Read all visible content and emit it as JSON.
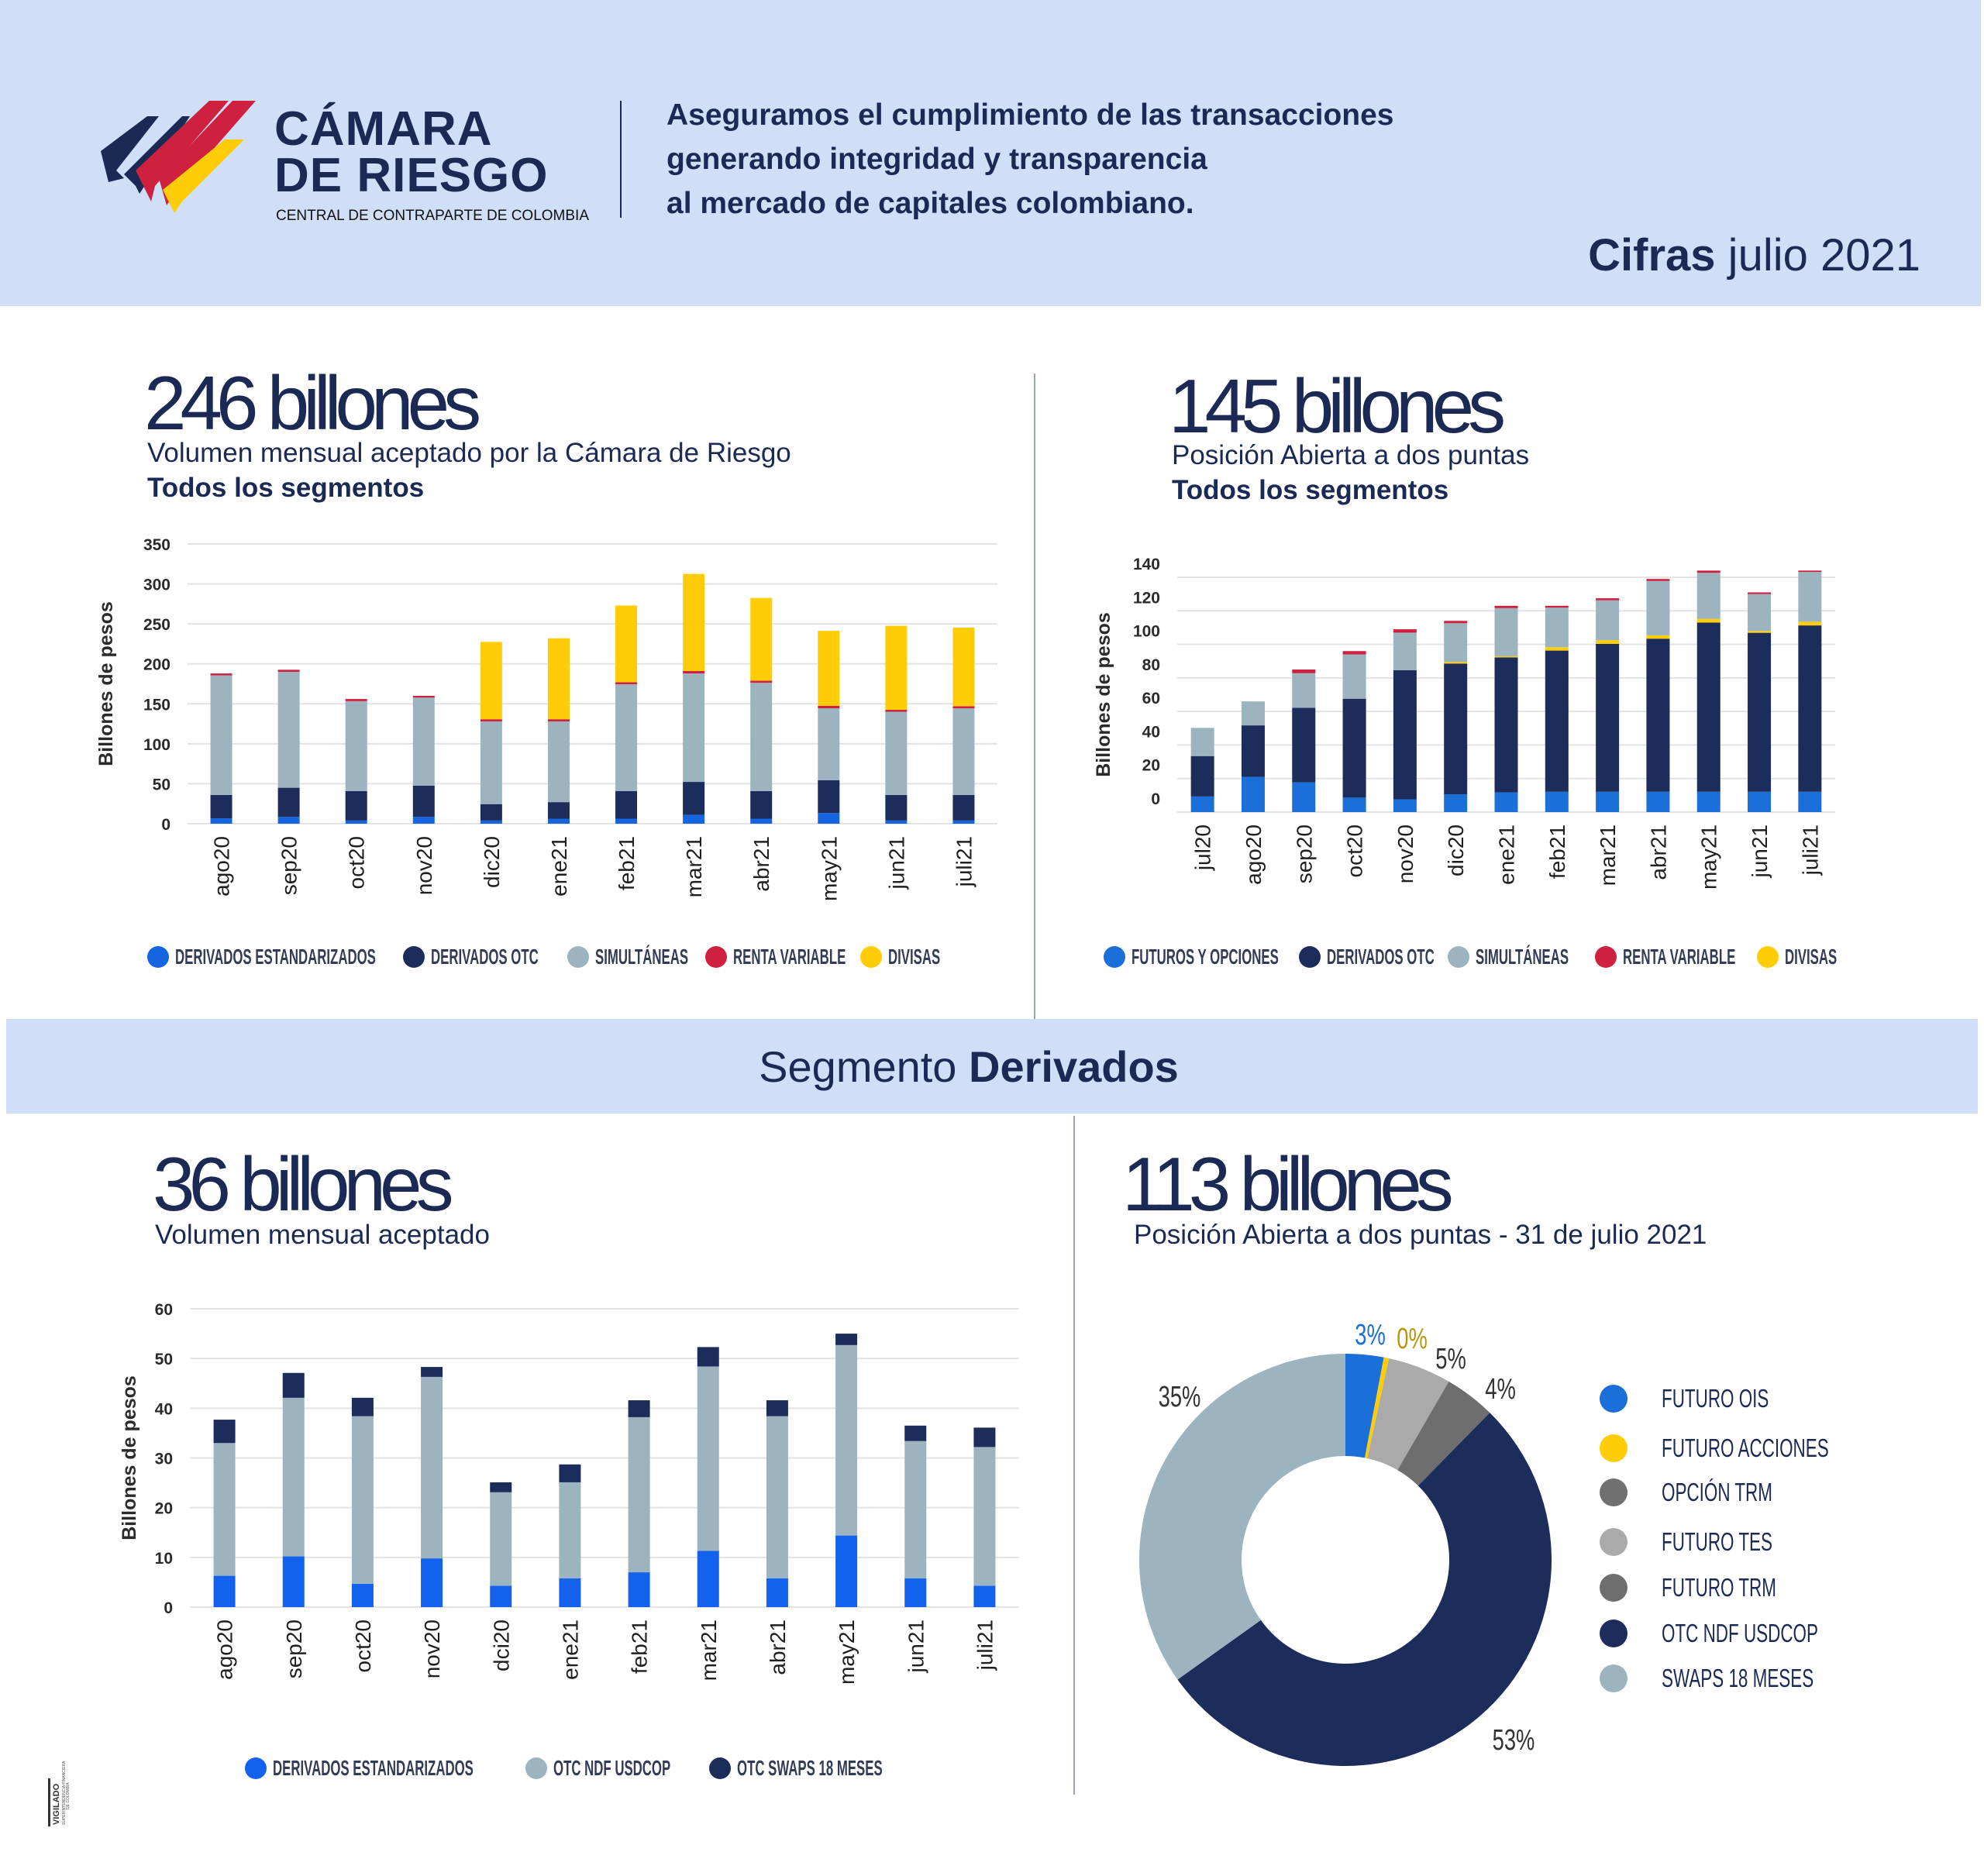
{
  "header": {
    "brand_line1": "CÁMARA",
    "brand_line2": "DE RIESGO",
    "brand_sub": "CENTRAL DE CONTRAPARTE DE COLOMBIA",
    "tagline": [
      "Aseguramos el cumplimiento de las transacciones",
      "generando integridad y transparencia",
      "al mercado de capitales colombiano."
    ],
    "cifras_bold": "Cifras",
    "cifras_rest": " julio 2021"
  },
  "colors": {
    "band": "#cedff7",
    "navy": "#1b2a55",
    "blue": "#1565e0",
    "gray_blue": "#9bb4c0",
    "red": "#d0203f",
    "yellow": "#fecd07",
    "light_gray": "#aaaaaa",
    "dark_gray": "#6e6e6e"
  },
  "panel1": {
    "big": "246 billones",
    "subtitle": "Volumen mensual aceptado por la Cámara de Riesgo",
    "subtitle_bold": "Todos los segmentos"
  },
  "panel2": {
    "big": "145 billones",
    "subtitle": "Posición Abierta a dos puntas",
    "subtitle_bold": "Todos los segmentos"
  },
  "segment_band": {
    "light": "Segmento ",
    "bold": "Derivados"
  },
  "panel3": {
    "big": "36 billones",
    "subtitle": "Volumen mensual aceptado"
  },
  "panel4": {
    "big": "113 billones",
    "subtitle": "Posición Abierta a dos puntas -  31 de julio  2021"
  },
  "stamp": {
    "text": "VIGILADO SUPERINTENDENCIA FINANCIERA DE COLOMBIA"
  },
  "chart_data": [
    {
      "type": "bar",
      "stacked": true,
      "title": "",
      "xlabel": "",
      "ylabel": "Billones de pesos",
      "ylim": [
        0,
        350
      ],
      "yticks": [
        0,
        50,
        100,
        150,
        200,
        250,
        300,
        350
      ],
      "grid": true,
      "legend": "bottom",
      "categories": [
        "ago20",
        "sep20",
        "oct20",
        "nov20",
        "dic20",
        "ene21",
        "feb21",
        "mar21",
        "abr21",
        "may21",
        "jun21",
        "juli21"
      ],
      "series": [
        {
          "name": "DERIVADOS  ESTANDARIZADOS",
          "color": "#1565e0",
          "values": [
            6.7,
            8.5,
            4,
            8.5,
            4,
            6.3,
            6.3,
            11,
            6.3,
            13.4,
            4,
            4
          ]
        },
        {
          "name": "DERIVADOS  OTC",
          "color": "#1c2c5b",
          "values": [
            29.3,
            36.5,
            36.8,
            39,
            20.5,
            20.7,
            34.5,
            41.3,
            34.5,
            41.1,
            32,
            32
          ]
        },
        {
          "name": "SIMULTÁNEAS",
          "color": "#9bb4c0",
          "values": [
            149.6,
            145,
            112.5,
            110.3,
            103.5,
            101,
            133.7,
            135.7,
            135.5,
            89.9,
            104,
            108.4
          ]
        },
        {
          "name": "RENTA VARIABLE",
          "color": "#d0203f",
          "values": [
            2.4,
            2.6,
            2.7,
            2.2,
            2.7,
            2.7,
            2.5,
            3,
            2.7,
            3,
            2.5,
            2.6
          ]
        },
        {
          "name": "DIVISAS",
          "color": "#fecd07",
          "values": [
            0,
            0,
            0,
            0,
            96.8,
            101.3,
            96,
            121.5,
            103.5,
            93.9,
            105.1,
            98.4
          ]
        }
      ]
    },
    {
      "type": "bar",
      "stacked": true,
      "title": "",
      "xlabel": "",
      "ylabel": "Billones de pesos",
      "ylim": [
        0,
        140
      ],
      "yticks": [
        0,
        20,
        40,
        60,
        80,
        100,
        120,
        140
      ],
      "grid": true,
      "legend": "bottom",
      "categories": [
        "jul20",
        "ago20",
        "sep20",
        "oct20",
        "nov20",
        "dic20",
        "ene21",
        "feb21",
        "mar21",
        "abr21",
        "may21",
        "jun21",
        "juli21"
      ],
      "series": [
        {
          "name": "FUTUROS Y OPCIONES",
          "color": "#1b6fd8",
          "values": [
            9.3,
            21,
            17.7,
            8.6,
            7.6,
            10.6,
            11.8,
            12.1,
            12.1,
            12.1,
            12.1,
            12.1,
            12.1
          ]
        },
        {
          "name": "DERIVADOS OTC",
          "color": "#1c2c5b",
          "values": [
            24.1,
            30.7,
            44.5,
            59,
            77,
            77.9,
            80.4,
            84.2,
            88.2,
            91.3,
            100.9,
            94.8,
            99.2
          ]
        },
        {
          "name": "SIMULTÁNEAS",
          "color": "#9bb4c0",
          "values": [
            16.8,
            14.3,
            20.6,
            26.4,
            22.4,
            23.1,
            28.7,
            23.6,
            23.8,
            32.4,
            27.5,
            22,
            29.7
          ]
        },
        {
          "name": "RENTA VARIABLE",
          "color": "#d0203f",
          "values": [
            0,
            0,
            2.2,
            2,
            2,
            1.4,
            1.4,
            1.1,
            1.2,
            1.2,
            1.3,
            1,
            0.8
          ]
        },
        {
          "name": "DIVISAS",
          "color": "#fecd07",
          "values": [
            0,
            0,
            0,
            0,
            0,
            1,
            0.7,
            2,
            2.2,
            2,
            2.2,
            1.1,
            2.2
          ]
        }
      ]
    },
    {
      "type": "bar",
      "stacked": true,
      "title": "",
      "xlabel": "",
      "ylabel": "Billones de pesos",
      "ylim": [
        0,
        60
      ],
      "yticks": [
        0,
        10,
        20,
        30,
        40,
        50,
        60
      ],
      "grid": true,
      "legend": "bottom",
      "categories": [
        "ago20",
        "sep20",
        "oct20",
        "nov20",
        "dci20",
        "ene21",
        "feb21",
        "mar21",
        "abr21",
        "may21",
        "jun21",
        "juli21"
      ],
      "series": [
        {
          "name": "DERIVADOS ESTANDARIZADOS",
          "color": "#1262ee",
          "values": [
            6.3,
            10.2,
            4.7,
            9.8,
            4.3,
            5.8,
            7,
            11.3,
            5.8,
            14.4,
            5.8,
            4.3
          ]
        },
        {
          "name": "OTC NDF USDCOP",
          "color": "#9bb4c0",
          "values": [
            26.7,
            31.9,
            33.7,
            36.5,
            18.8,
            19.3,
            31.2,
            37.1,
            32.6,
            38.3,
            27.6,
            27.9
          ]
        },
        {
          "name": "OTC SWAPS 18 MESES",
          "color": "#1c2c5b",
          "values": [
            4.7,
            5,
            3.7,
            2,
            2,
            3.6,
            3.4,
            3.9,
            3.2,
            2.3,
            3.1,
            3.9
          ]
        }
      ]
    },
    {
      "type": "pie",
      "donut": true,
      "title": "",
      "legend": "right",
      "slices": [
        {
          "name": "FUTURO OIS",
          "value": 3,
          "label": "3%",
          "color": "#1b6fd8"
        },
        {
          "name": "FUTURO ACCIONES",
          "value": 0,
          "label": "0%",
          "color": "#fecd07"
        },
        {
          "name": "OPCIÓN TRM",
          "value": 0,
          "label": "",
          "color": "#707070"
        },
        {
          "name": "FUTURO TES",
          "value": 5,
          "label": "5%",
          "color": "#aaaaaa"
        },
        {
          "name": "FUTURO TRM",
          "value": 4,
          "label": "4%",
          "color": "#6e6e6e"
        },
        {
          "name": "OTC NDF USDCOP",
          "value": 53,
          "label": "53%",
          "color": "#1c2c5b"
        },
        {
          "name": "SWAPS 18 MESES",
          "value": 35,
          "label": "35%",
          "color": "#9bb4c0"
        }
      ]
    }
  ]
}
